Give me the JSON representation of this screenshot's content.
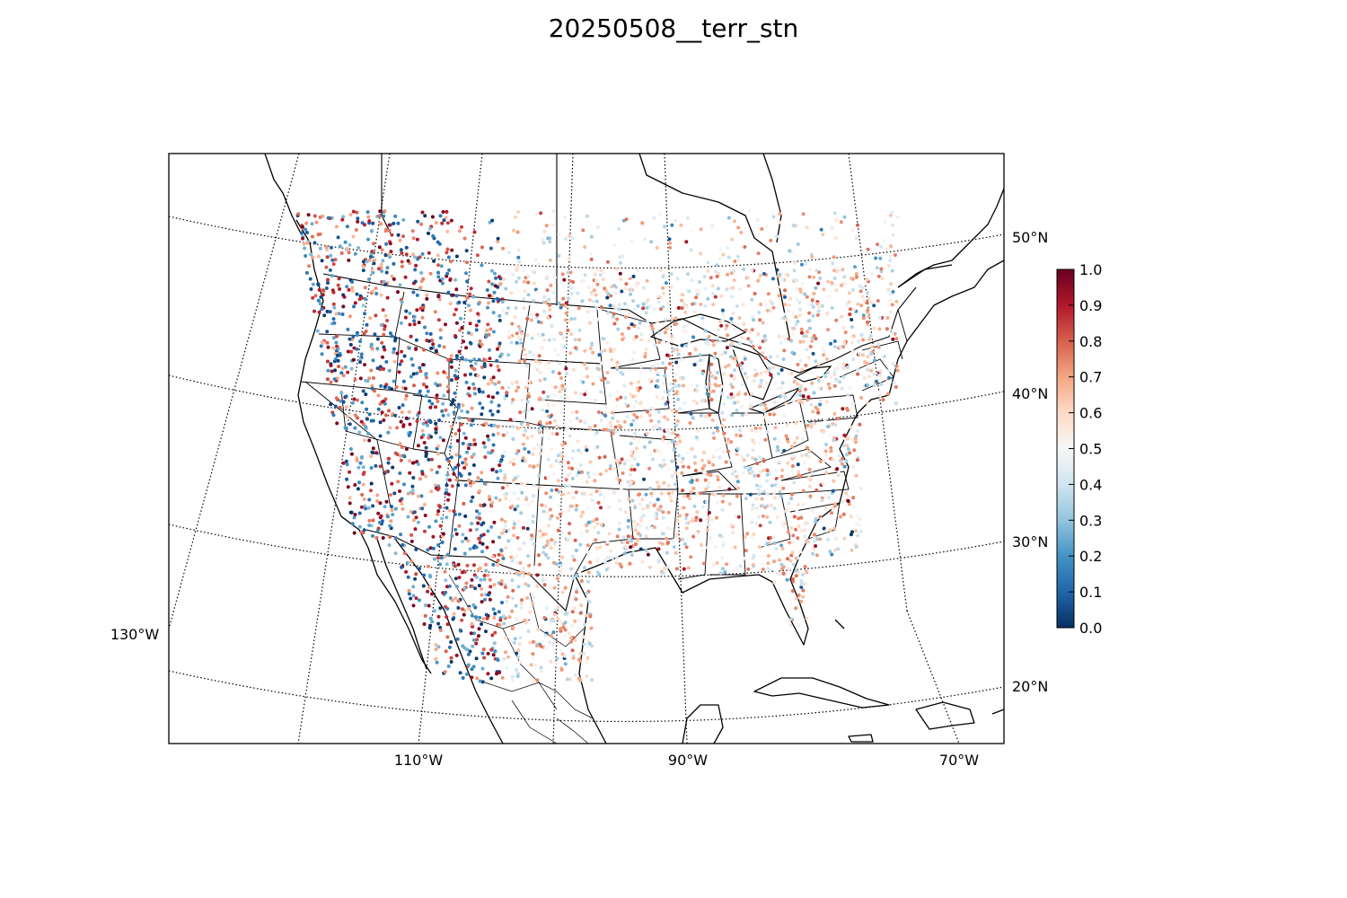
{
  "title": "20250508__terr_stn",
  "map": {
    "projection": "lambert-conformal",
    "meridian_labels": [
      "130°W",
      "110°W",
      "90°W",
      "70°W"
    ],
    "parallel_labels": [
      "50°N",
      "40°N",
      "30°N",
      "20°N"
    ],
    "graticule_style": "dotted",
    "features": [
      "coastlines",
      "country-borders",
      "us-state-borders",
      "mexico-state-borders",
      "great-lakes"
    ]
  },
  "colorbar": {
    "colormap": "RdBu_r",
    "range": [
      0.0,
      1.0
    ],
    "tick_labels": [
      "0.0",
      "0.1",
      "0.2",
      "0.3",
      "0.4",
      "0.5",
      "0.6",
      "0.7",
      "0.8",
      "0.9",
      "1.0"
    ],
    "colors": [
      "#053061",
      "#2166ac",
      "#4393c3",
      "#92c5de",
      "#d1e5f0",
      "#f7f7f7",
      "#fddbc7",
      "#f4a582",
      "#d6604d",
      "#b2182b",
      "#67001f"
    ]
  },
  "chart_data": {
    "type": "scatter",
    "title": "20250508__terr_stn",
    "description_values": "station values 0.0–1.0 colored by colormap",
    "value_range": [
      0.0,
      1.0
    ]
  }
}
